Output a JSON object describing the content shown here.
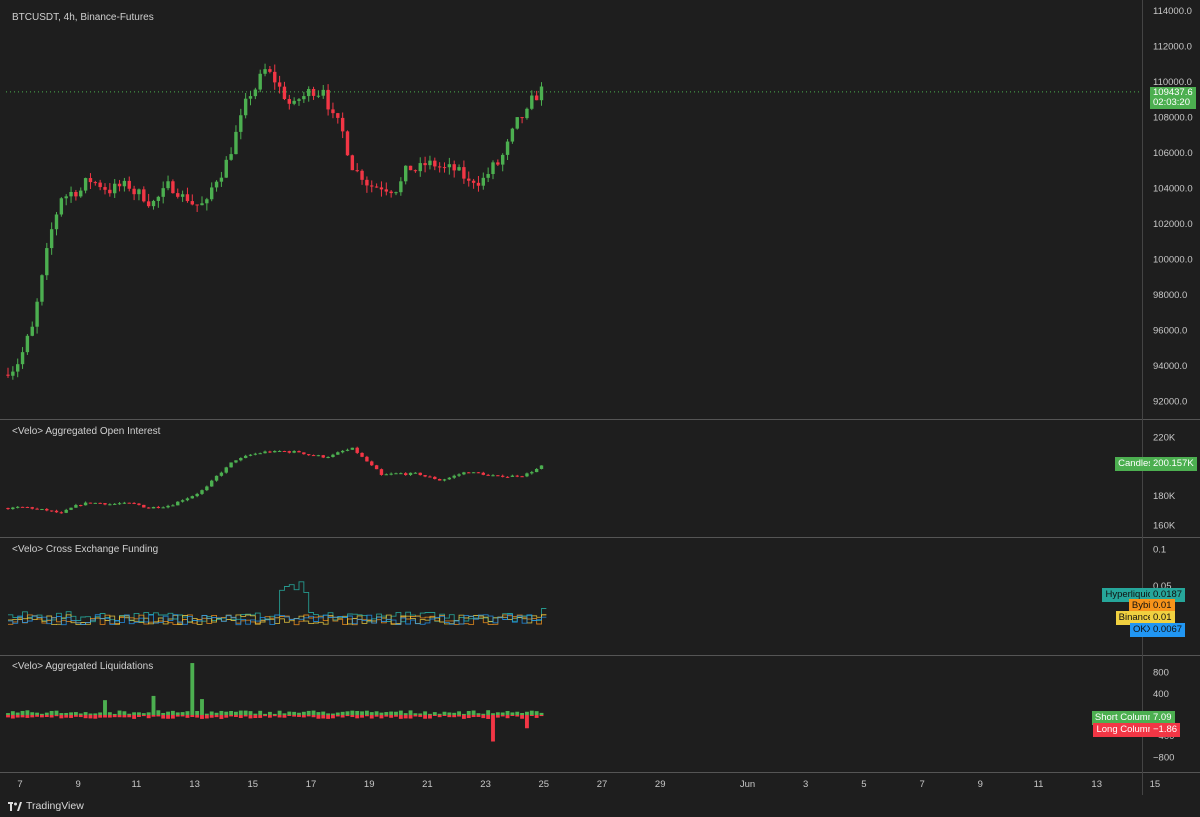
{
  "header": {
    "symbol_title": "BTCUSDT, 4h, Binance-Futures"
  },
  "colors": {
    "up": "#4caf50",
    "down": "#f23645",
    "background": "#1e1e1e",
    "grid": "#2a2a2a",
    "hyperliquid": "#26a69a",
    "bybit": "#f7931a",
    "binance": "#f0d040",
    "okx": "#2196f3"
  },
  "price_pane": {
    "last_price_label": "109437.6",
    "countdown": "02:03:20"
  },
  "oi_pane": {
    "title": "<Velo> Aggregated Open Interest",
    "tag_name": "Candles",
    "tag_value": "200.157K"
  },
  "funding_pane": {
    "title": "<Velo> Cross Exchange Funding",
    "tags": [
      {
        "name": "Hyperliquid",
        "value": "0.0187"
      },
      {
        "name": "Bybit",
        "value": "0.01"
      },
      {
        "name": "Binance",
        "value": "0.01"
      },
      {
        "name": "OKX",
        "value": "0.0067"
      }
    ]
  },
  "liq_pane": {
    "title": "<Velo> Aggregated Liquidations",
    "tags": [
      {
        "name": "Short Column",
        "value": "7.09"
      },
      {
        "name": "Long Column",
        "value": "−1.86"
      }
    ]
  },
  "footer": {
    "brand": "TradingView"
  },
  "chart_data": [
    {
      "type": "candlestick",
      "title": "BTCUSDT, 4h, Binance-Futures",
      "y_ticks": [
        "114000.0",
        "112000.0",
        "110000.0",
        "108000.0",
        "106000.0",
        "104000.0",
        "102000.0",
        "100000.0",
        "98000.0",
        "96000.0",
        "94000.0",
        "92000.0"
      ],
      "ylim": [
        91000,
        114500
      ],
      "x_ticks": [
        "7",
        "9",
        "11",
        "13",
        "15",
        "17",
        "19",
        "21",
        "23",
        "25",
        "27",
        "29",
        "Jun",
        "3",
        "5",
        "7",
        "9",
        "11",
        "13",
        "15"
      ],
      "last_price": 109437.6,
      "daily_closes": [
        96000,
        103600,
        104500,
        104100,
        103400,
        104000,
        103000,
        107000,
        110600,
        108500,
        109800,
        105400,
        104200,
        105200,
        105200,
        104200,
        105400,
        108100,
        109600
      ]
    },
    {
      "type": "candlestick",
      "title": "<Velo> Aggregated Open Interest",
      "y_ticks": [
        "220K",
        "180K",
        "160K"
      ],
      "ylim": [
        155000,
        225000
      ],
      "last_value": 200157,
      "daily_values": [
        172000,
        168000,
        176000,
        175000,
        172000,
        176000,
        186000,
        205000,
        210000,
        210000,
        207000,
        212000,
        194000,
        195000,
        191000,
        197000,
        193000,
        195000,
        200000
      ]
    },
    {
      "type": "line",
      "title": "<Velo> Cross Exchange Funding",
      "y_ticks": [
        "0.1",
        "0.05"
      ],
      "ylim": [
        -0.04,
        0.105
      ],
      "series": [
        {
          "name": "Hyperliquid",
          "last": 0.0187
        },
        {
          "name": "Bybit",
          "last": 0.01
        },
        {
          "name": "Binance",
          "last": 0.01
        },
        {
          "name": "OKX",
          "last": 0.0067
        }
      ]
    },
    {
      "type": "bar",
      "title": "<Velo> Aggregated Liquidations",
      "y_ticks": [
        "800",
        "400",
        "−400",
        "−800"
      ],
      "ylim": [
        -1000,
        1000
      ],
      "series": [
        {
          "name": "Short Column",
          "last": 7.09
        },
        {
          "name": "Long Column",
          "last": -1.86
        }
      ]
    }
  ]
}
